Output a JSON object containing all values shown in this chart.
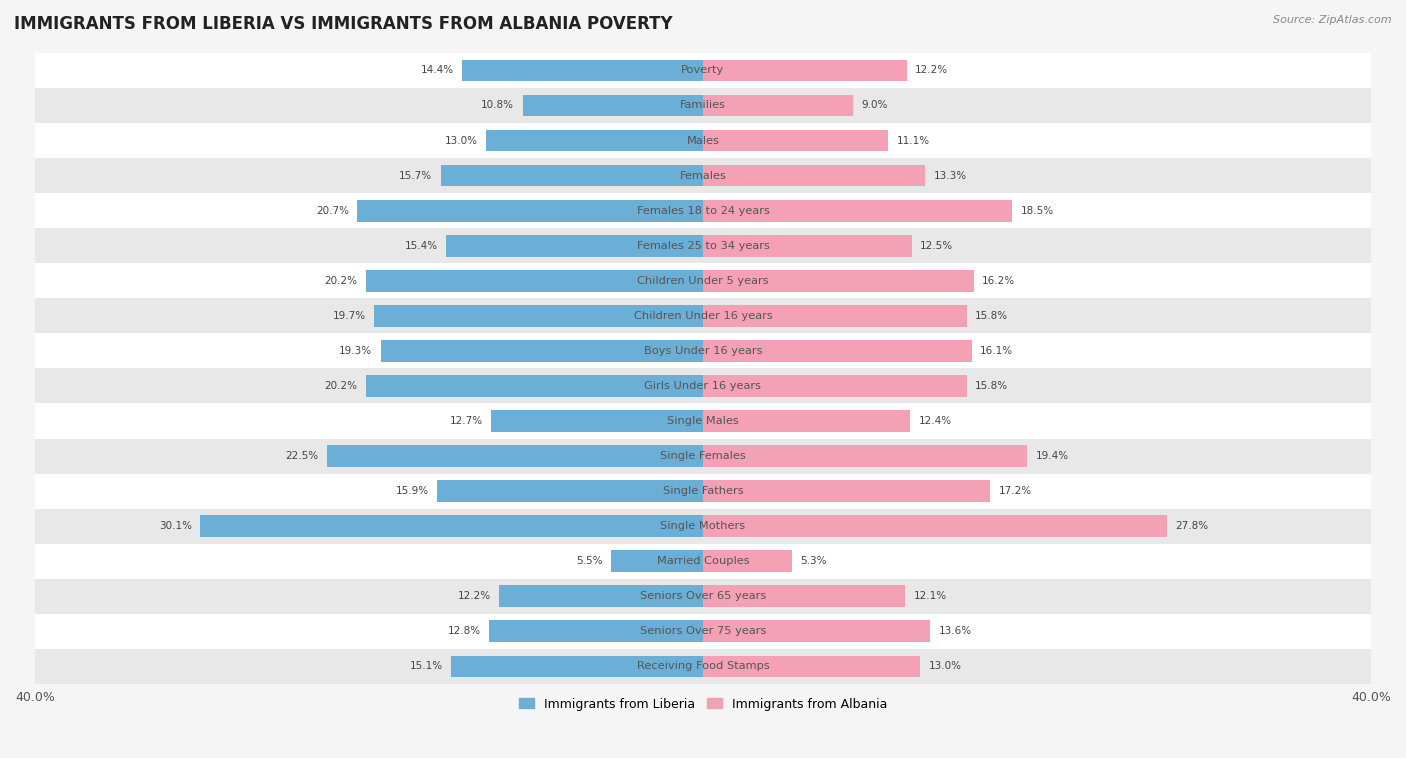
{
  "title": "IMMIGRANTS FROM LIBERIA VS IMMIGRANTS FROM ALBANIA POVERTY",
  "source": "Source: ZipAtlas.com",
  "categories": [
    "Poverty",
    "Families",
    "Males",
    "Females",
    "Females 18 to 24 years",
    "Females 25 to 34 years",
    "Children Under 5 years",
    "Children Under 16 years",
    "Boys Under 16 years",
    "Girls Under 16 years",
    "Single Males",
    "Single Females",
    "Single Fathers",
    "Single Mothers",
    "Married Couples",
    "Seniors Over 65 years",
    "Seniors Over 75 years",
    "Receiving Food Stamps"
  ],
  "liberia_values": [
    14.4,
    10.8,
    13.0,
    15.7,
    20.7,
    15.4,
    20.2,
    19.7,
    19.3,
    20.2,
    12.7,
    22.5,
    15.9,
    30.1,
    5.5,
    12.2,
    12.8,
    15.1
  ],
  "albania_values": [
    12.2,
    9.0,
    11.1,
    13.3,
    18.5,
    12.5,
    16.2,
    15.8,
    16.1,
    15.8,
    12.4,
    19.4,
    17.2,
    27.8,
    5.3,
    12.1,
    13.6,
    13.0
  ],
  "liberia_color": "#6baed6",
  "albania_color": "#f4a0b5",
  "liberia_label": "Immigrants from Liberia",
  "albania_label": "Immigrants from Albania",
  "xlim": 40.0,
  "bar_height": 0.62,
  "background_color": "#f5f5f5",
  "row_colors": [
    "#ffffff",
    "#e8e8e8"
  ],
  "title_fontsize": 12,
  "label_fontsize": 8.2,
  "value_fontsize": 7.5,
  "legend_fontsize": 9
}
